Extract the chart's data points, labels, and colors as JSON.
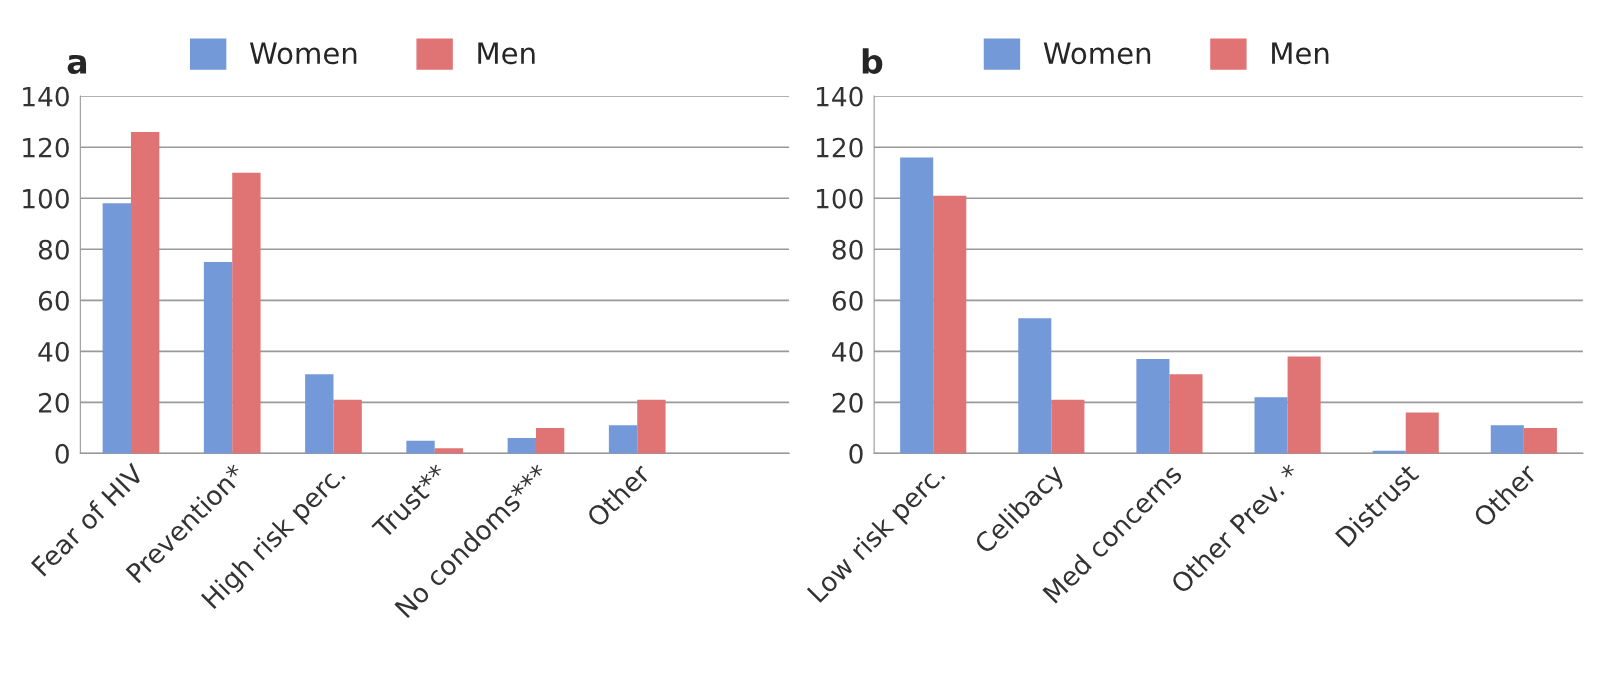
{
  "chart_data": [
    {
      "type": "bar",
      "title": "a",
      "categories": [
        "Fear of HIV",
        "Prevention*",
        "High risk perc.",
        "Trust**",
        "No condoms***",
        "Other",
        null
      ],
      "series": [
        {
          "name": "Women",
          "color": "#7399d9",
          "values": [
            98,
            75,
            31,
            5,
            6,
            11,
            null
          ]
        },
        {
          "name": "Men",
          "color": "#e07474",
          "values": [
            126,
            110,
            21,
            2,
            10,
            21,
            null
          ]
        }
      ],
      "ylim": [
        0,
        140
      ],
      "yticks": [
        0,
        20,
        40,
        60,
        80,
        100,
        120,
        140
      ],
      "grid": "y",
      "legend": "top"
    },
    {
      "type": "bar",
      "title": "b",
      "categories": [
        "Low risk perc.",
        "Celibacy",
        "Med concerns",
        "Other Prev. *",
        "Distrust",
        "Other"
      ],
      "series": [
        {
          "name": "Women",
          "color": "#7399d9",
          "values": [
            116,
            53,
            37,
            22,
            1,
            11
          ]
        },
        {
          "name": "Men",
          "color": "#e07474",
          "values": [
            101,
            21,
            31,
            38,
            16,
            10
          ]
        }
      ],
      "ylim": [
        0,
        140
      ],
      "yticks": [
        0,
        20,
        40,
        60,
        80,
        100,
        120,
        140
      ],
      "grid": "y",
      "legend": "top"
    }
  ]
}
